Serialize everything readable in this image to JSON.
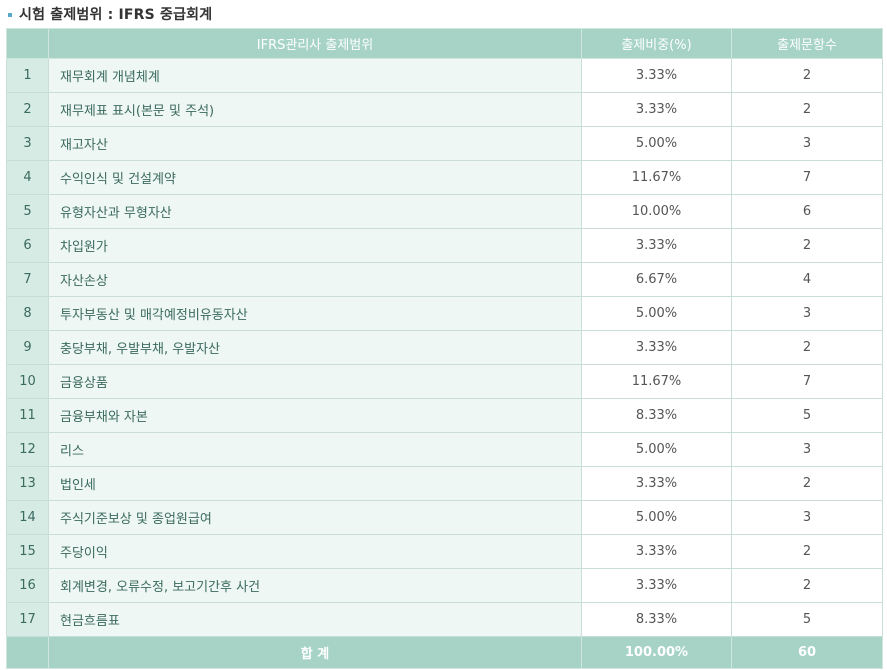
{
  "title": "시험 출제범위 : IFRS 중급회계",
  "colors": {
    "header_bg": "#a6d3c6",
    "num_bg": "#d6ebe4",
    "subject_bg": "#eef7f3"
  },
  "table": {
    "headers": {
      "blank": "",
      "subject": "IFRS관리사 출제범위",
      "ratio": "출제비중(%)",
      "count": "출제문항수"
    },
    "rows": [
      {
        "no": "1",
        "subject": "재무회계 개념체계",
        "ratio": "3.33%",
        "count": "2"
      },
      {
        "no": "2",
        "subject": "재무제표 표시(본문 및 주석)",
        "ratio": "3.33%",
        "count": "2"
      },
      {
        "no": "3",
        "subject": "재고자산",
        "ratio": "5.00%",
        "count": "3"
      },
      {
        "no": "4",
        "subject": "수익인식 및 건설계약",
        "ratio": "11.67%",
        "count": "7"
      },
      {
        "no": "5",
        "subject": "유형자산과 무형자산",
        "ratio": "10.00%",
        "count": "6"
      },
      {
        "no": "6",
        "subject": "차입원가",
        "ratio": "3.33%",
        "count": "2"
      },
      {
        "no": "7",
        "subject": "자산손상",
        "ratio": "6.67%",
        "count": "4"
      },
      {
        "no": "8",
        "subject": "투자부동산 및 매각예정비유동자산",
        "ratio": "5.00%",
        "count": "3"
      },
      {
        "no": "9",
        "subject": "충당부채, 우발부채, 우발자산",
        "ratio": "3.33%",
        "count": "2"
      },
      {
        "no": "10",
        "subject": "금융상품",
        "ratio": "11.67%",
        "count": "7"
      },
      {
        "no": "11",
        "subject": "금융부채와 자본",
        "ratio": "8.33%",
        "count": "5"
      },
      {
        "no": "12",
        "subject": "리스",
        "ratio": "5.00%",
        "count": "3"
      },
      {
        "no": "13",
        "subject": "법인세",
        "ratio": "3.33%",
        "count": "2"
      },
      {
        "no": "14",
        "subject": "주식기준보상 및 종업원급여",
        "ratio": "5.00%",
        "count": "3"
      },
      {
        "no": "15",
        "subject": "주당이익",
        "ratio": "3.33%",
        "count": "2"
      },
      {
        "no": "16",
        "subject": "회계변경, 오류수정, 보고기간후 사건",
        "ratio": "3.33%",
        "count": "2"
      },
      {
        "no": "17",
        "subject": "현금흐름표",
        "ratio": "8.33%",
        "count": "5"
      }
    ],
    "total": {
      "label": "합 계",
      "ratio": "100.00%",
      "count": "60"
    }
  }
}
